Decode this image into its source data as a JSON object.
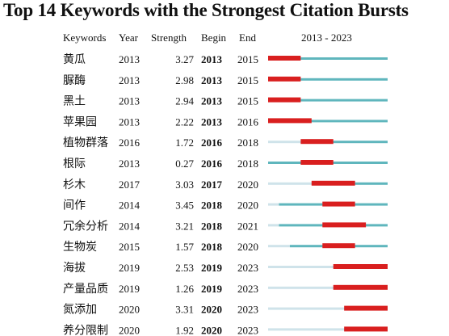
{
  "title": "Top 14 Keywords with the Strongest Citation Bursts",
  "headers": {
    "keywords": "Keywords",
    "year": "Year",
    "strength": "Strength",
    "begin": "Begin",
    "end": "End",
    "range": "2013 - 2023"
  },
  "colors": {
    "pre_period": "#cfe3ea",
    "active_period": "#5fb6bd",
    "burst": "#d91f1f"
  },
  "chart_data": {
    "type": "table",
    "title": "Top 14 Keywords with the Strongest Citation Bursts",
    "timeline": [
      2013,
      2023
    ],
    "rows": [
      {
        "keyword": "黄瓜",
        "year": 2013,
        "strength": "3.27",
        "begin": 2013,
        "end": 2015
      },
      {
        "keyword": "脲酶",
        "year": 2013,
        "strength": "2.98",
        "begin": 2013,
        "end": 2015
      },
      {
        "keyword": "黑土",
        "year": 2013,
        "strength": "2.94",
        "begin": 2013,
        "end": 2015
      },
      {
        "keyword": "苹果园",
        "year": 2013,
        "strength": "2.22",
        "begin": 2013,
        "end": 2016
      },
      {
        "keyword": "植物群落",
        "year": 2016,
        "strength": "1.72",
        "begin": 2016,
        "end": 2018
      },
      {
        "keyword": "根际",
        "year": 2013,
        "strength": "0.27",
        "begin": 2016,
        "end": 2018
      },
      {
        "keyword": "杉木",
        "year": 2017,
        "strength": "3.03",
        "begin": 2017,
        "end": 2020
      },
      {
        "keyword": "间作",
        "year": 2014,
        "strength": "3.45",
        "begin": 2018,
        "end": 2020
      },
      {
        "keyword": "冗余分析",
        "year": 2014,
        "strength": "3.21",
        "begin": 2018,
        "end": 2021
      },
      {
        "keyword": "生物炭",
        "year": 2015,
        "strength": "1.57",
        "begin": 2018,
        "end": 2020
      },
      {
        "keyword": "海拔",
        "year": 2019,
        "strength": "2.53",
        "begin": 2019,
        "end": 2023
      },
      {
        "keyword": "产量品质",
        "year": 2019,
        "strength": "1.26",
        "begin": 2019,
        "end": 2023
      },
      {
        "keyword": "氮添加",
        "year": 2020,
        "strength": "3.31",
        "begin": 2020,
        "end": 2023
      },
      {
        "keyword": "养分限制",
        "year": 2020,
        "strength": "1.92",
        "begin": 2020,
        "end": 2023
      }
    ]
  }
}
